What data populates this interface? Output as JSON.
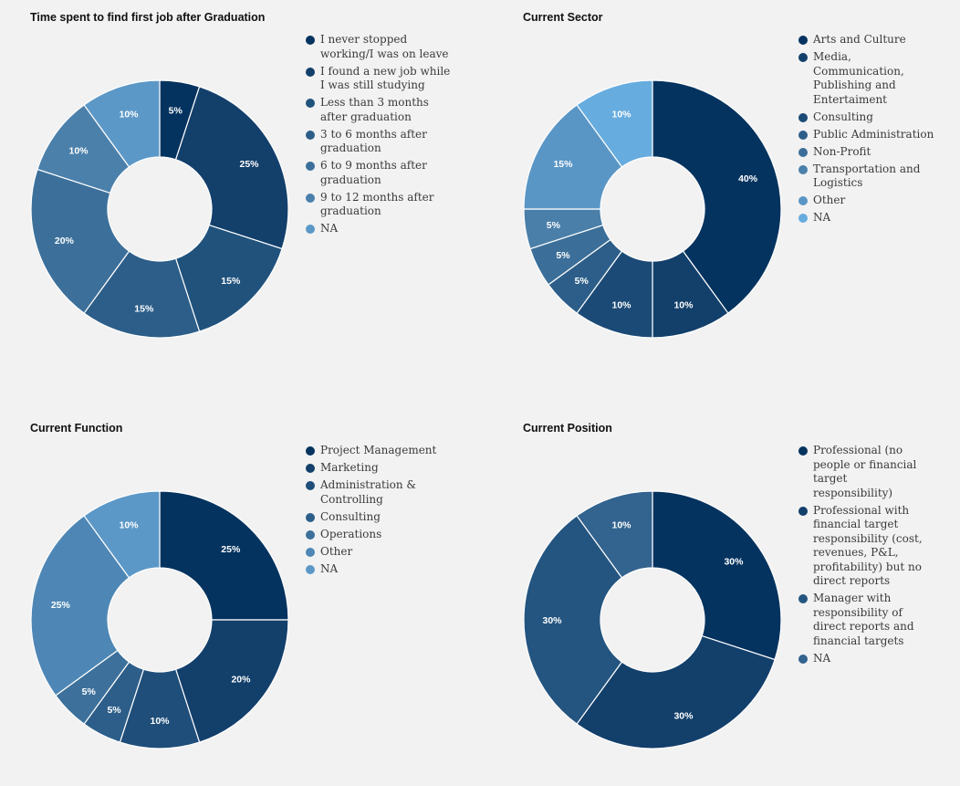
{
  "chart_data": [
    {
      "type": "pie",
      "title": "Time spent to find first job after Graduation",
      "categories": [
        "I never stopped working/I was on leave",
        "I found a new job while I was still studying",
        "Less than 3 months after graduation",
        "3 to 6 months after graduation",
        "6 to 9 months after graduation",
        "9 to 12 months after graduation",
        "NA"
      ],
      "values": [
        5,
        25,
        15,
        15,
        20,
        10,
        10
      ],
      "labels": [
        "5%",
        "25%",
        "15%",
        "15%",
        "20%",
        "10%",
        "10%"
      ],
      "slice_colors": [
        "#05335f",
        "#133f6b",
        "#20527c",
        "#2d5e89",
        "#3c709a",
        "#4b80ab",
        "#5c98c7"
      ],
      "legend_colors": [
        "#05335f",
        "#133f6b",
        "#20527c",
        "#2d5e89",
        "#3c709a",
        "#4b80ab",
        "#5c98c7"
      ],
      "legend": "right"
    },
    {
      "type": "pie",
      "title": "Current Sector",
      "categories": [
        "Arts and Culture",
        "Media, Communication, Publishing and Entertaiment",
        "Consulting",
        "Public Administration",
        "Non-Profit",
        "Transportation and Logistics",
        "Other",
        "NA"
      ],
      "values": [
        40,
        10,
        10,
        5,
        5,
        5,
        15,
        10
      ],
      "labels": [
        "40%",
        "10%",
        "10%",
        "5%",
        "5%",
        "5%",
        "15%",
        "10%"
      ],
      "slice_colors": [
        "#05335f",
        "#133f6b",
        "#1c4a76",
        "#2d5e89",
        "#3b6f99",
        "#4a7fa9",
        "#5a96c5",
        "#67acdf"
      ],
      "legend_colors": [
        "#05335f",
        "#133f6b",
        "#1c4a76",
        "#2d5e89",
        "#3b6f99",
        "#4a7fa9",
        "#5a96c5",
        "#67acdf"
      ],
      "legend": "right"
    },
    {
      "type": "pie",
      "title": "Current Function",
      "categories": [
        "Project Management",
        "Marketing",
        "Administration & Controlling",
        "Consulting",
        "Operations",
        "Other",
        "NA"
      ],
      "values": [
        25,
        20,
        10,
        5,
        5,
        25,
        10
      ],
      "labels": [
        "25%",
        "20%",
        "10%",
        "5%",
        "5%",
        "25%",
        "10%"
      ],
      "slice_colors": [
        "#05335f",
        "#133f6b",
        "#1f4e7a",
        "#2d5e89",
        "#3d719b",
        "#4e87b5",
        "#5c98c7"
      ],
      "legend_colors": [
        "#05335f",
        "#133f6b",
        "#1f4e7a",
        "#2d5e89",
        "#3d719b",
        "#4e87b5",
        "#5c98c7"
      ],
      "legend": "right"
    },
    {
      "type": "pie",
      "title": "Current Position",
      "categories": [
        "Professional (no people or financial target responsibility)",
        "Professional with financial target responsibility (cost, revenues, P&L, profitability) but no direct reports",
        "Manager with responsibility of direct reports and financial targets",
        "NA"
      ],
      "values": [
        30,
        30,
        30,
        10
      ],
      "labels": [
        "30%",
        "30%",
        "30%",
        "10%"
      ],
      "slice_colors": [
        "#05335f",
        "#133f6b",
        "#245580",
        "#33638f"
      ],
      "legend_colors": [
        "#05335f",
        "#133f6b",
        "#245580",
        "#33638f"
      ],
      "legend": "right"
    }
  ]
}
